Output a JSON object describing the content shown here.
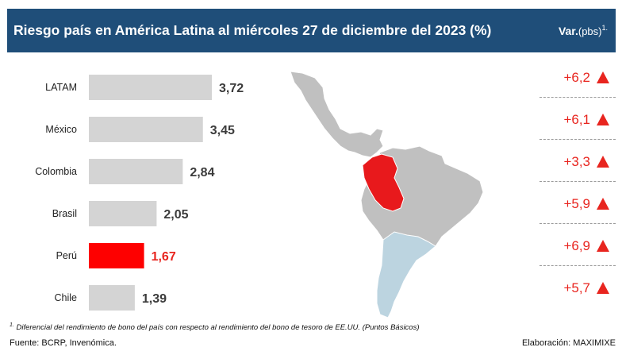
{
  "header": {
    "title": "Riesgo país en América Latina al miércoles 27 de diciembre del 2023  (%)",
    "var_label": "Var.",
    "var_unit": "(pbs)",
    "var_sup": "1."
  },
  "chart_data": {
    "type": "bar",
    "orientation": "horizontal",
    "title": "Riesgo país en América Latina al miércoles 27 de diciembre del 2023  (%)",
    "categories": [
      "LATAM",
      "México",
      "Colombia",
      "Brasil",
      "Perú",
      "Chile"
    ],
    "values": [
      3.72,
      3.45,
      2.84,
      2.05,
      1.67,
      1.39
    ],
    "value_labels": [
      "3,72",
      "3,45",
      "2,84",
      "2,05",
      "1,67",
      "1,39"
    ],
    "highlight_category": "Perú",
    "xlim": [
      0,
      4
    ],
    "grid": false,
    "colors": {
      "bar": "#d4d4d4",
      "highlight": "#fe0000",
      "highlight_label": "#e8251f",
      "label": "#3b3b3b"
    },
    "variation": {
      "values": [
        6.2,
        6.1,
        3.3,
        5.9,
        6.9,
        5.7
      ],
      "labels": [
        "+6,2",
        "+6,1",
        "+3,3",
        "+5,9",
        "+6,9",
        "+5,7"
      ],
      "direction": [
        "up",
        "up",
        "up",
        "up",
        "up",
        "up"
      ]
    }
  },
  "map": {
    "colors": {
      "land": "#c0c0c0",
      "americas": "#bcd4e0",
      "highlight": "#e8191c",
      "outline": "#ffffff"
    }
  },
  "footer": {
    "footnote_sup": "1.",
    "footnote": "Diferencial del rendimiento de bono del país con respecto al rendimiento del bono de tesoro de EE.UU. (Puntos Básicos)",
    "source": "Fuente: BCRP, Invenómica.",
    "credit": "Elaboración: MAXIMIXE"
  }
}
